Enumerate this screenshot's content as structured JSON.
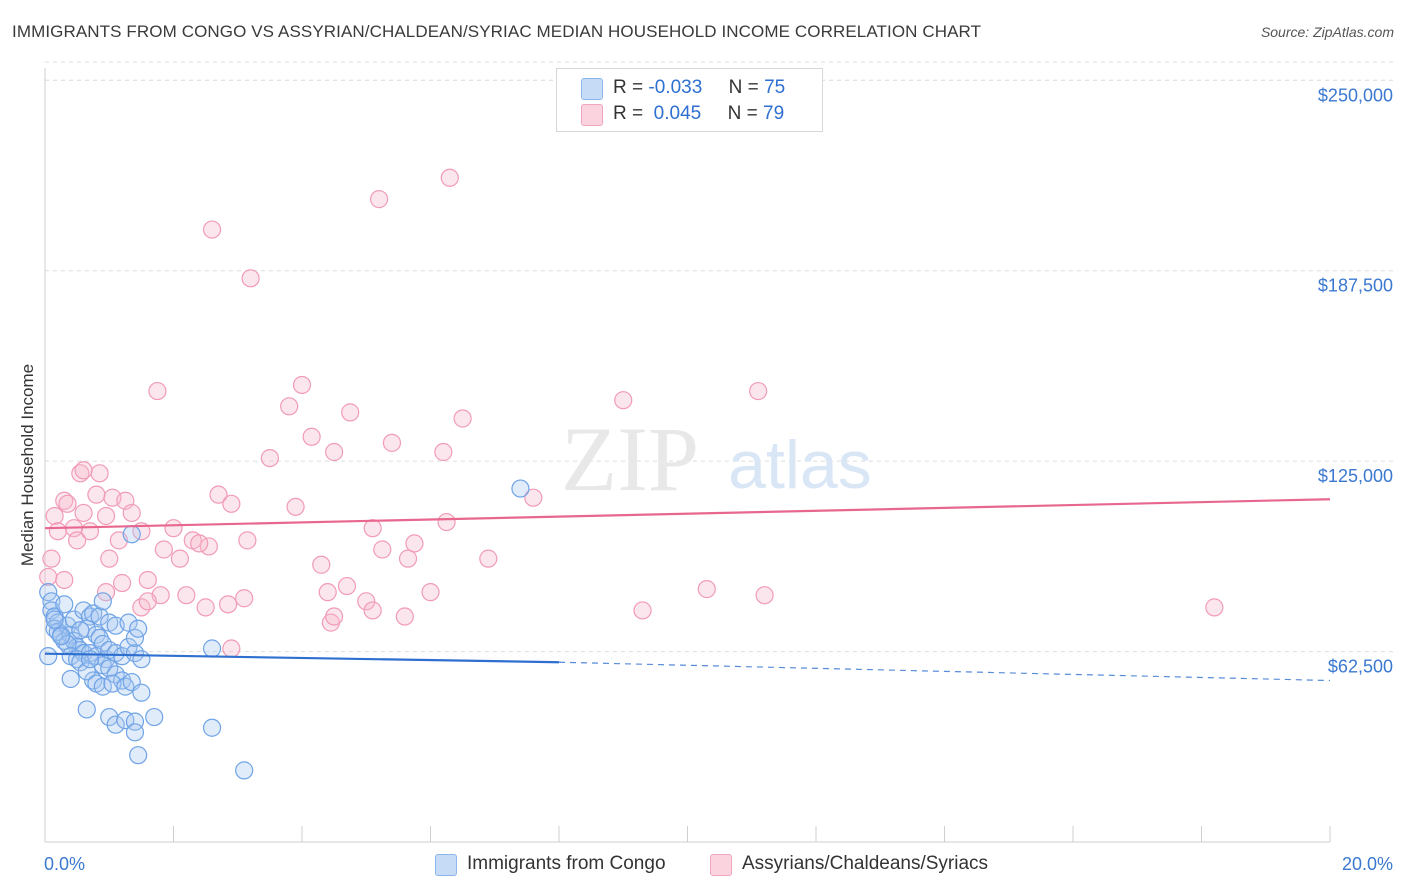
{
  "title": "IMMIGRANTS FROM CONGO VS ASSYRIAN/CHALDEAN/SYRIAC MEDIAN HOUSEHOLD INCOME CORRELATION CHART",
  "source": "Source: ZipAtlas.com",
  "watermark": {
    "zip": "ZIP",
    "atlas": "atlas"
  },
  "legend": {
    "rows": [
      {
        "r_label": "R =",
        "r_value": "-0.033",
        "n_label": "N =",
        "n_value": "75",
        "color": "#a8c8f0"
      },
      {
        "r_label": "R =",
        "r_value": " 0.045",
        "n_label": "N =",
        "n_value": "79",
        "color": "#f6b8cb"
      }
    ]
  },
  "bottom_legend": [
    {
      "label": "Immigrants from Congo",
      "color": "#a8c8f0"
    },
    {
      "label": "Assyrians/Chaldeans/Syriacs",
      "color": "#f6b8cb"
    }
  ],
  "chart_data": {
    "type": "scatter",
    "xlabel": "",
    "ylabel": "Median Household Income",
    "xlim": [
      0,
      20
    ],
    "ylim": [
      0,
      256000
    ],
    "x_tick_labels": [
      "0.0%",
      "20.0%"
    ],
    "y_ticks": [
      62500,
      125000,
      187500,
      250000
    ],
    "y_tick_labels": [
      "$62,500",
      "$125,000",
      "$187,500",
      "$250,000"
    ],
    "grid": "horizontal dashed",
    "colors": {
      "blue_point": "#6fa3e6",
      "blue_line": "#2e6fd0",
      "pink_point": "#f19bb7",
      "pink_line": "#e8678f",
      "tick_label": "#3b78d0"
    },
    "series": [
      {
        "name": "Immigrants from Congo",
        "trend": {
          "x": [
            0,
            8,
            20
          ],
          "y": [
            61800,
            59000,
            53000
          ],
          "solid_until": 8
        },
        "points": [
          [
            0.05,
            82000
          ],
          [
            0.1,
            79000
          ],
          [
            0.1,
            76000
          ],
          [
            0.15,
            74000
          ],
          [
            0.2,
            72000
          ],
          [
            0.15,
            70000
          ],
          [
            0.25,
            68000
          ],
          [
            0.3,
            66000
          ],
          [
            0.2,
            69000
          ],
          [
            0.35,
            71000
          ],
          [
            0.4,
            68000
          ],
          [
            0.45,
            66000
          ],
          [
            0.5,
            64000
          ],
          [
            0.55,
            63000
          ],
          [
            0.6,
            62000
          ],
          [
            0.35,
            65000
          ],
          [
            0.25,
            67500
          ],
          [
            0.4,
            61000
          ],
          [
            0.5,
            60000
          ],
          [
            0.3,
            78000
          ],
          [
            0.45,
            73000
          ],
          [
            0.6,
            76000
          ],
          [
            0.7,
            74000
          ],
          [
            0.75,
            75000
          ],
          [
            0.65,
            70000
          ],
          [
            0.8,
            68000
          ],
          [
            0.85,
            67000
          ],
          [
            0.9,
            65000
          ],
          [
            0.55,
            59000
          ],
          [
            0.7,
            62000
          ],
          [
            0.8,
            61000
          ],
          [
            0.95,
            60000
          ],
          [
            1.0,
            63000
          ],
          [
            1.1,
            62000
          ],
          [
            1.2,
            61000
          ],
          [
            0.9,
            58000
          ],
          [
            1.0,
            57000
          ],
          [
            1.1,
            55000
          ],
          [
            0.75,
            53000
          ],
          [
            1.2,
            53000
          ],
          [
            0.85,
            74000
          ],
          [
            0.9,
            79000
          ],
          [
            1.0,
            72000
          ],
          [
            1.1,
            71000
          ],
          [
            1.3,
            64000
          ],
          [
            1.4,
            62000
          ],
          [
            1.5,
            60000
          ],
          [
            1.3,
            72000
          ],
          [
            0.4,
            53500
          ],
          [
            0.65,
            56000
          ],
          [
            0.7,
            60000
          ],
          [
            0.8,
            52000
          ],
          [
            0.9,
            51000
          ],
          [
            1.05,
            52000
          ],
          [
            1.25,
            51000
          ],
          [
            1.35,
            52500
          ],
          [
            1.5,
            49000
          ],
          [
            0.65,
            43500
          ],
          [
            1.0,
            41000
          ],
          [
            1.1,
            38500
          ],
          [
            1.25,
            40000
          ],
          [
            1.4,
            39500
          ],
          [
            1.4,
            36000
          ],
          [
            1.7,
            41000
          ],
          [
            2.6,
            37500
          ],
          [
            1.45,
            28500
          ],
          [
            3.1,
            23500
          ],
          [
            1.4,
            67000
          ],
          [
            1.45,
            70000
          ],
          [
            2.6,
            63500
          ],
          [
            0.55,
            69500
          ],
          [
            0.15,
            73000
          ],
          [
            0.05,
            61000
          ],
          [
            1.35,
            101000
          ],
          [
            7.4,
            116000
          ]
        ]
      },
      {
        "name": "Assyrians/Chaldeans/Syriacs",
        "trend": {
          "x": [
            0,
            20
          ],
          "y": [
            103000,
            112500
          ],
          "solid_until": 20
        },
        "points": [
          [
            0.05,
            87000
          ],
          [
            0.1,
            93000
          ],
          [
            0.15,
            107000
          ],
          [
            0.2,
            102000
          ],
          [
            0.3,
            112000
          ],
          [
            0.35,
            111000
          ],
          [
            0.45,
            103000
          ],
          [
            0.5,
            99000
          ],
          [
            0.6,
            108000
          ],
          [
            0.55,
            121000
          ],
          [
            0.7,
            102000
          ],
          [
            0.8,
            114000
          ],
          [
            0.85,
            121000
          ],
          [
            0.95,
            107000
          ],
          [
            1.0,
            93000
          ],
          [
            1.05,
            113000
          ],
          [
            1.15,
            99000
          ],
          [
            1.25,
            112000
          ],
          [
            1.35,
            108000
          ],
          [
            1.5,
            102000
          ],
          [
            1.6,
            86000
          ],
          [
            1.8,
            81000
          ],
          [
            1.75,
            148000
          ],
          [
            1.85,
            96000
          ],
          [
            2.0,
            103000
          ],
          [
            2.1,
            93000
          ],
          [
            2.2,
            81000
          ],
          [
            2.3,
            99000
          ],
          [
            2.5,
            77000
          ],
          [
            2.55,
            97000
          ],
          [
            2.7,
            114000
          ],
          [
            2.85,
            78000
          ],
          [
            2.9,
            111000
          ],
          [
            3.1,
            80000
          ],
          [
            3.15,
            99000
          ],
          [
            3.5,
            126000
          ],
          [
            3.8,
            143000
          ],
          [
            3.9,
            110000
          ],
          [
            4.0,
            150000
          ],
          [
            4.15,
            133000
          ],
          [
            4.3,
            91000
          ],
          [
            4.45,
            72000
          ],
          [
            4.4,
            82000
          ],
          [
            4.5,
            74000
          ],
          [
            4.7,
            84000
          ],
          [
            4.75,
            141000
          ],
          [
            4.5,
            128000
          ],
          [
            5.0,
            79000
          ],
          [
            5.1,
            76000
          ],
          [
            5.1,
            103000
          ],
          [
            5.25,
            96000
          ],
          [
            5.4,
            131000
          ],
          [
            5.6,
            74000
          ],
          [
            5.65,
            93000
          ],
          [
            5.75,
            98000
          ],
          [
            6.0,
            82000
          ],
          [
            6.2,
            128000
          ],
          [
            6.25,
            105000
          ],
          [
            6.5,
            139000
          ],
          [
            6.9,
            93000
          ],
          [
            7.6,
            113000
          ],
          [
            9.0,
            145000
          ],
          [
            9.3,
            76000
          ],
          [
            10.3,
            83000
          ],
          [
            11.1,
            148000
          ],
          [
            11.2,
            81000
          ],
          [
            18.2,
            77000
          ],
          [
            2.6,
            201000
          ],
          [
            3.2,
            185000
          ],
          [
            5.2,
            211000
          ],
          [
            6.3,
            218000
          ],
          [
            0.6,
            122000
          ],
          [
            0.95,
            82000
          ],
          [
            1.2,
            85000
          ],
          [
            1.5,
            77000
          ],
          [
            1.6,
            79000
          ],
          [
            2.4,
            98000
          ],
          [
            2.9,
            63500
          ],
          [
            0.3,
            86000
          ]
        ]
      }
    ]
  }
}
